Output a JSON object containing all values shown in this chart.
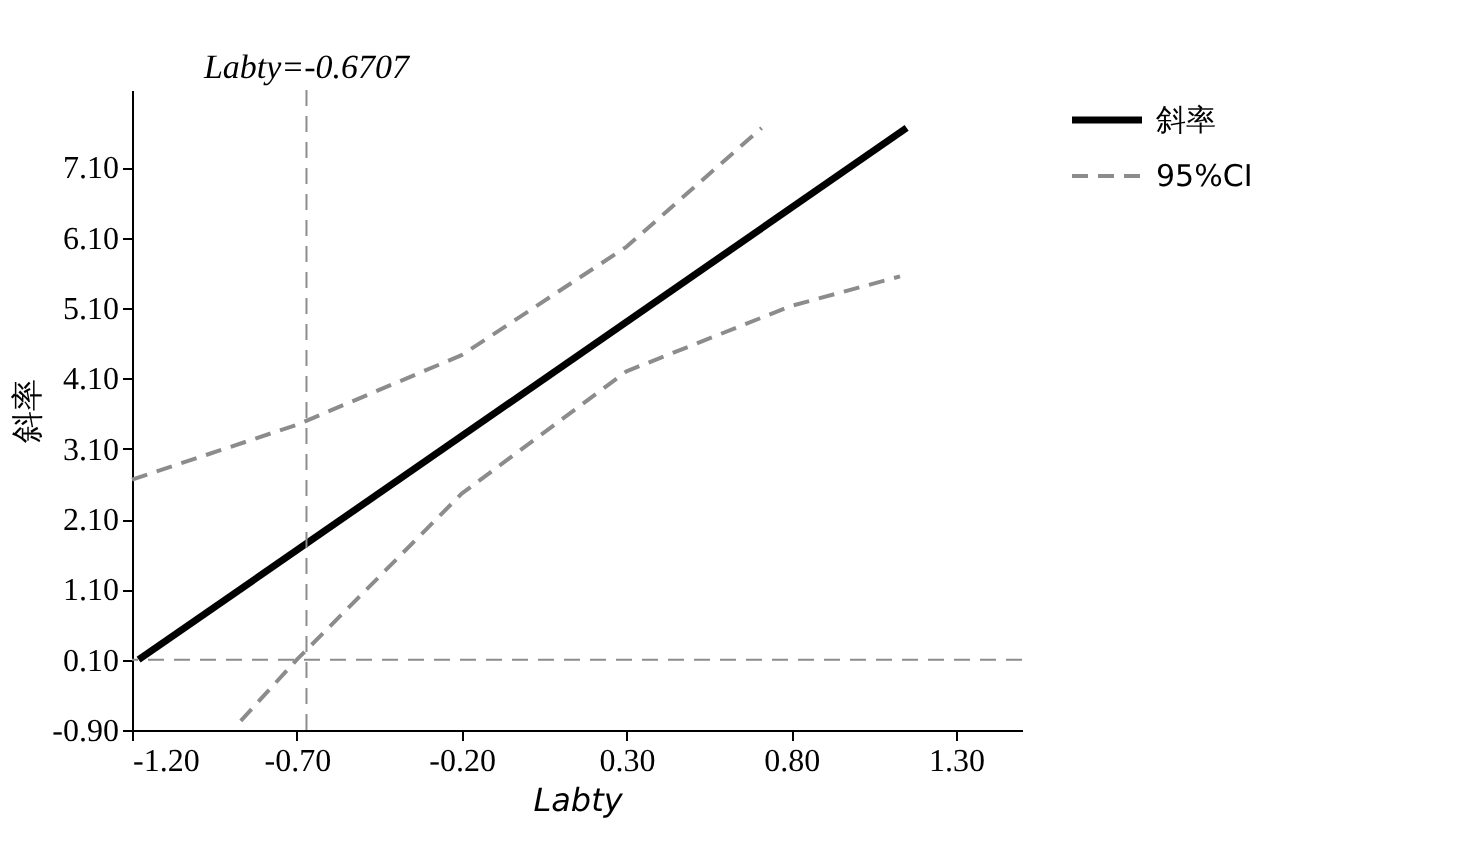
{
  "chart_data": {
    "type": "line",
    "xlabel": "Labty",
    "ylabel": "斜率",
    "xlim": [
      -1.2,
      1.5
    ],
    "ylim": [
      -0.9,
      8.2
    ],
    "xticks": [
      {
        "value": -1.2,
        "label": "-1.20"
      },
      {
        "value": -0.7,
        "label": "-0.70"
      },
      {
        "value": -0.2,
        "label": "-0.20"
      },
      {
        "value": 0.3,
        "label": "0.30"
      },
      {
        "value": 0.8,
        "label": "0.80"
      },
      {
        "value": 1.3,
        "label": "1.30"
      }
    ],
    "yticks": [
      {
        "value": -0.9,
        "label": "-0.90"
      },
      {
        "value": 0.1,
        "label": "0.10"
      },
      {
        "value": 1.1,
        "label": "1.10"
      },
      {
        "value": 2.1,
        "label": "2.10"
      },
      {
        "value": 3.1,
        "label": "3.10"
      },
      {
        "value": 4.1,
        "label": "4.10"
      },
      {
        "value": 5.1,
        "label": "5.10"
      },
      {
        "value": 6.1,
        "label": "6.10"
      },
      {
        "value": 7.1,
        "label": "7.10"
      }
    ],
    "series": [
      {
        "name": "斜率",
        "color": "#000000",
        "line_style": "solid",
        "x": [
          -1.18,
          1.15
        ],
        "values": [
          0.1,
          7.66
        ]
      },
      {
        "name": "95%CI",
        "color": "#8c8c8c",
        "line_style": "dashed",
        "x": [
          -1.2,
          -0.7,
          -0.2,
          0.3,
          0.71
        ],
        "values": [
          2.66,
          3.44,
          4.43,
          5.97,
          7.66
        ]
      },
      {
        "color": "#8c8c8c",
        "line_style": "dashed",
        "x": [
          -0.87,
          -0.7,
          -0.2,
          0.3,
          0.8,
          1.13
        ],
        "values": [
          -0.77,
          0.1,
          2.46,
          4.2,
          5.13,
          5.55
        ]
      }
    ],
    "ref_lines": [
      {
        "axis": "x",
        "value": -0.6707,
        "label": "Labty=-0.6707",
        "color": "#8c8c8c",
        "line_style": "dashed"
      },
      {
        "axis": "y",
        "value": 0.1,
        "color": "#8c8c8c",
        "line_style": "dashed"
      }
    ],
    "grid": false,
    "legend": "top right",
    "marker": "none"
  }
}
